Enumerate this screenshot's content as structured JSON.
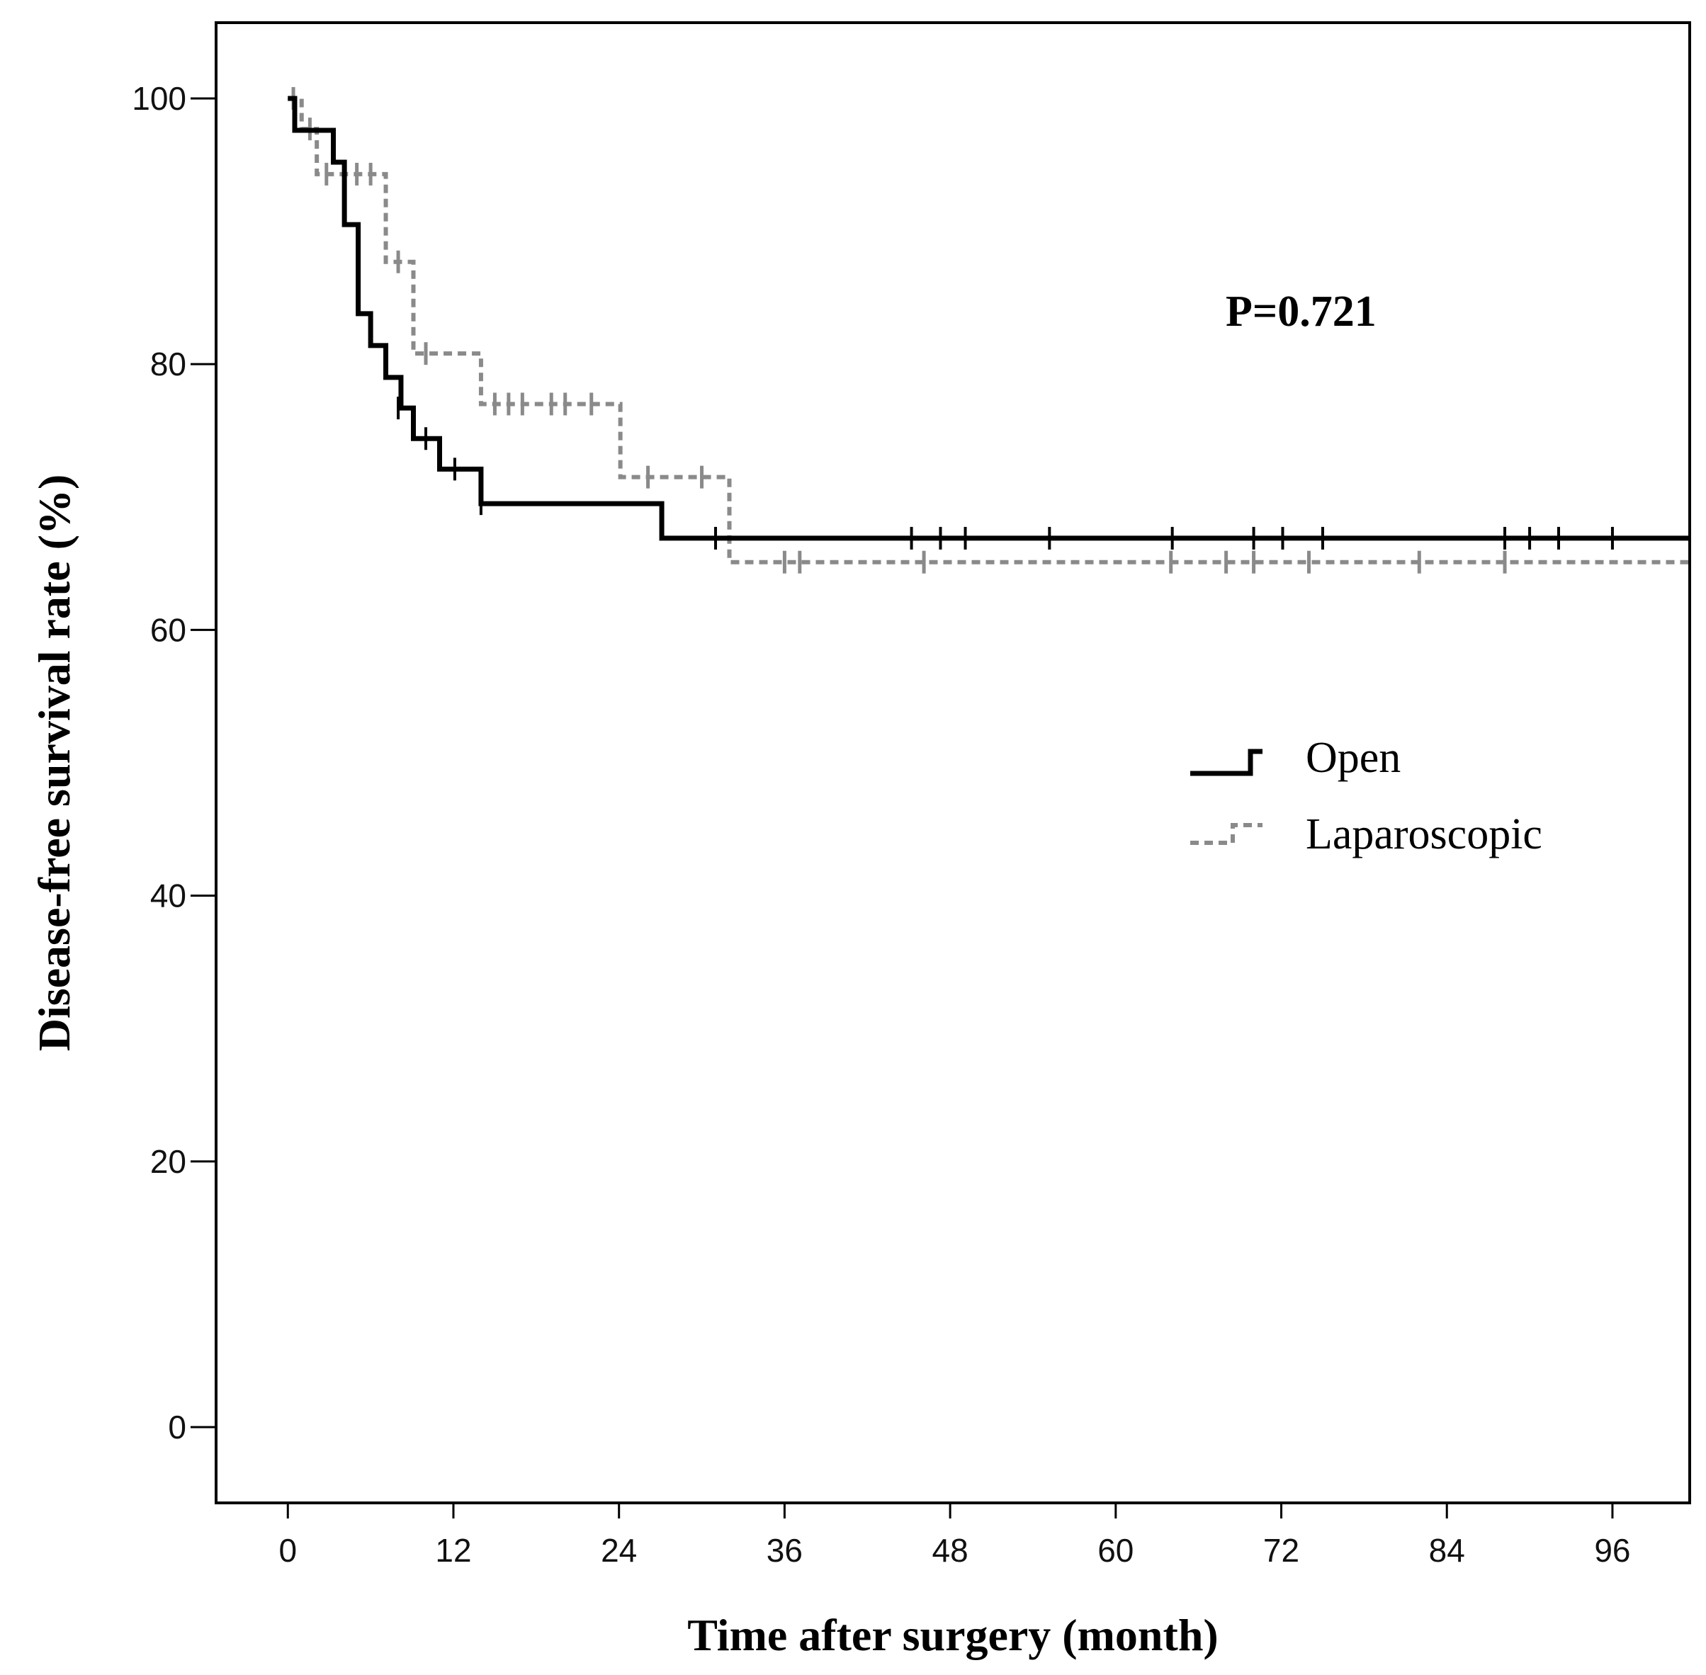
{
  "chart_data": {
    "type": "line",
    "subtype": "kaplan-meier step curve",
    "xlabel": "Time after surgery (month)",
    "ylabel": "Disease-free survival rate (%)",
    "xlim": [
      -5.2,
      101.6
    ],
    "ylim": [
      -5.7,
      105.7
    ],
    "xticks": [
      0,
      12,
      24,
      36,
      48,
      60,
      72,
      84,
      96
    ],
    "yticks": [
      0,
      20,
      40,
      60,
      80,
      100
    ],
    "annotation": "P=0.721",
    "legend_position": "right-middle",
    "grid": false,
    "series": [
      {
        "name": "Open",
        "color": "#000000",
        "line_style": "solid",
        "steps": [
          [
            0,
            100
          ],
          [
            0.5,
            97.6
          ],
          [
            3.3,
            95.2
          ],
          [
            4.1,
            90.5
          ],
          [
            5.1,
            83.8
          ],
          [
            6.0,
            81.4
          ],
          [
            7.1,
            79.0
          ],
          [
            8.2,
            76.7
          ],
          [
            9.1,
            74.4
          ],
          [
            11.0,
            72.1
          ],
          [
            14.0,
            69.5
          ],
          [
            27.1,
            66.9
          ]
        ],
        "end_x": 101.6,
        "censored": [
          [
            8.0,
            76.7
          ],
          [
            10.0,
            74.4
          ],
          [
            12.1,
            72.1
          ],
          [
            14.0,
            69.5
          ],
          [
            31.0,
            66.9
          ],
          [
            45.2,
            66.9
          ],
          [
            47.3,
            66.9
          ],
          [
            49.1,
            66.9
          ],
          [
            55.2,
            66.9
          ],
          [
            64.1,
            66.9
          ],
          [
            70.0,
            66.9
          ],
          [
            72.1,
            66.9
          ],
          [
            75.0,
            66.9
          ],
          [
            88.2,
            66.9
          ],
          [
            90.0,
            66.9
          ],
          [
            92.1,
            66.9
          ],
          [
            96.0,
            66.9
          ]
        ]
      },
      {
        "name": "Laparoscopic",
        "color": "#8a8a8a",
        "line_style": "dashed",
        "steps": [
          [
            0,
            100
          ],
          [
            1.0,
            97.7
          ],
          [
            2.1,
            94.3
          ],
          [
            7.1,
            87.7
          ],
          [
            9.1,
            80.8
          ],
          [
            14.0,
            77.0
          ],
          [
            24.1,
            71.5
          ],
          [
            32.0,
            65.1
          ]
        ],
        "end_x": 101.6,
        "censored": [
          [
            0.4,
            100
          ],
          [
            1.6,
            97.7
          ],
          [
            2.8,
            94.3
          ],
          [
            4.1,
            94.3
          ],
          [
            5.0,
            94.3
          ],
          [
            6.0,
            94.3
          ],
          [
            8.0,
            87.7
          ],
          [
            10.0,
            80.8
          ],
          [
            15.0,
            77.0
          ],
          [
            16.0,
            77.0
          ],
          [
            17.0,
            77.0
          ],
          [
            19.1,
            77.0
          ],
          [
            20.1,
            77.0
          ],
          [
            22.0,
            77.0
          ],
          [
            26.1,
            71.5
          ],
          [
            30.0,
            71.5
          ],
          [
            36.0,
            65.1
          ],
          [
            37.1,
            65.1
          ],
          [
            46.1,
            65.1
          ],
          [
            64.0,
            65.1
          ],
          [
            68.0,
            65.1
          ],
          [
            70.0,
            65.1
          ],
          [
            74.0,
            65.1
          ],
          [
            82.0,
            65.1
          ],
          [
            88.2,
            65.1
          ]
        ]
      }
    ]
  }
}
